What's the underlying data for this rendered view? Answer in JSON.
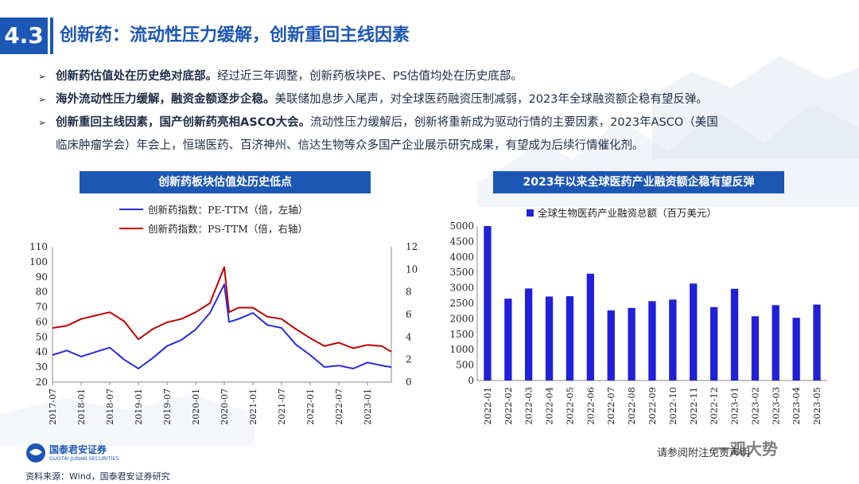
{
  "header": {
    "section_number": "4.3",
    "title": "创新药：流动性压力缓解，创新重回主线因素"
  },
  "bullets": [
    {
      "bold": "创新药估值处在历史绝对底部。",
      "text": "经过近三年调整，创新药板块PE、PS估值均处在历史底部。"
    },
    {
      "bold": "海外流动性压力缓解，融资金额逐步企稳。",
      "text": "美联储加息步入尾声，对全球医药融资压制减弱，2023年全球融资额企稳有望反弹。"
    },
    {
      "bold": "创新重回主线因素，国产创新药亮相ASCO大会。",
      "text": "流动性压力缓解后，创新将重新成为驱动行情的主要因素，2023年ASCO（美国",
      "text2": "临床肿瘤学会）年会上，恒瑞医药、百济神州、信达生物等众多国产企业展示研究成果，有望成为后续行情催化剂。"
    }
  ],
  "colors": {
    "accent": "#1d57b5",
    "pe_line": "#2a2ae0",
    "ps_line": "#c00000",
    "bar": "#2020d8"
  },
  "chart_data": [
    {
      "type": "line",
      "title": "创新药板块估值处历史低点",
      "series": [
        {
          "name": "创新药指数：PE-TTM（倍，左轴）",
          "axis": "left",
          "x": [
            "2017-07",
            "2017-10",
            "2018-01",
            "2018-04",
            "2018-07",
            "2018-10",
            "2019-01",
            "2019-04",
            "2019-07",
            "2019-10",
            "2020-01",
            "2020-04",
            "2020-07",
            "2020-08",
            "2020-10",
            "2021-01",
            "2021-04",
            "2021-07",
            "2021-10",
            "2022-01",
            "2022-04",
            "2022-07",
            "2022-10",
            "2023-01",
            "2023-04",
            "2023-06"
          ],
          "values": [
            38,
            41,
            37,
            40,
            43,
            35,
            29,
            36,
            44,
            48,
            55,
            66,
            85,
            60,
            62,
            66,
            58,
            56,
            45,
            38,
            30,
            31,
            29,
            33,
            31,
            30
          ]
        },
        {
          "name": "创新药指数：PS-TTM（倍，右轴）",
          "axis": "right",
          "x": [
            "2017-07",
            "2017-10",
            "2018-01",
            "2018-04",
            "2018-07",
            "2018-10",
            "2019-01",
            "2019-04",
            "2019-07",
            "2019-10",
            "2020-01",
            "2020-04",
            "2020-07",
            "2020-08",
            "2020-10",
            "2021-01",
            "2021-04",
            "2021-07",
            "2021-10",
            "2022-01",
            "2022-04",
            "2022-07",
            "2022-10",
            "2023-01",
            "2023-04",
            "2023-06"
          ],
          "values": [
            4.8,
            5.0,
            5.6,
            5.9,
            6.2,
            5.4,
            3.8,
            4.7,
            5.3,
            5.6,
            6.2,
            7.0,
            10.2,
            6.2,
            6.6,
            6.6,
            5.8,
            5.6,
            4.7,
            3.9,
            3.2,
            3.5,
            3.0,
            3.3,
            3.2,
            2.7
          ]
        }
      ],
      "x_ticks": [
        "2017-07",
        "2018-01",
        "2018-07",
        "2019-01",
        "2019-07",
        "2020-01",
        "2020-07",
        "2021-01",
        "2021-07",
        "2022-01",
        "2022-07",
        "2023-01"
      ],
      "y_left": {
        "range": [
          20,
          110
        ],
        "ticks": [
          20,
          30,
          40,
          50,
          60,
          70,
          80,
          90,
          100,
          110
        ]
      },
      "y_right": {
        "range": [
          0,
          12
        ],
        "ticks": [
          0,
          2,
          4,
          6,
          8,
          10,
          12
        ]
      },
      "legend": "top"
    },
    {
      "type": "bar",
      "title": "2023年以来全球医药产业融资额企稳有望反弹",
      "categories": [
        "2022-01",
        "2022-02",
        "2022-03",
        "2022-04",
        "2022-05",
        "2022-06",
        "2022-07",
        "2022-08",
        "2022-09",
        "2022-10",
        "2022-11",
        "2022-12",
        "2023-01",
        "2023-02",
        "2023-03",
        "2023-04",
        "2023-05"
      ],
      "series": [
        {
          "name": "全球生物医药产业融资总额（百万美元）",
          "values": [
            5000,
            2650,
            2980,
            2720,
            2730,
            3460,
            2270,
            2350,
            2570,
            2620,
            3140,
            2380,
            2970,
            2080,
            2440,
            2030,
            2460
          ]
        }
      ],
      "ylim": [
        0,
        5000
      ],
      "y_ticks": [
        0,
        500,
        1000,
        1500,
        2000,
        2500,
        3000,
        3500,
        4000,
        4500,
        5000
      ],
      "legend": "top"
    }
  ],
  "footer": {
    "source": "资料来源：Wind，国泰君安证券研究",
    "logo_text": "国泰君安证券",
    "logo_sub": "GUOTAI JUNAN SECURITIES",
    "disclaimer": "请参阅附注免责声明",
    "watermark": "一观大势"
  }
}
